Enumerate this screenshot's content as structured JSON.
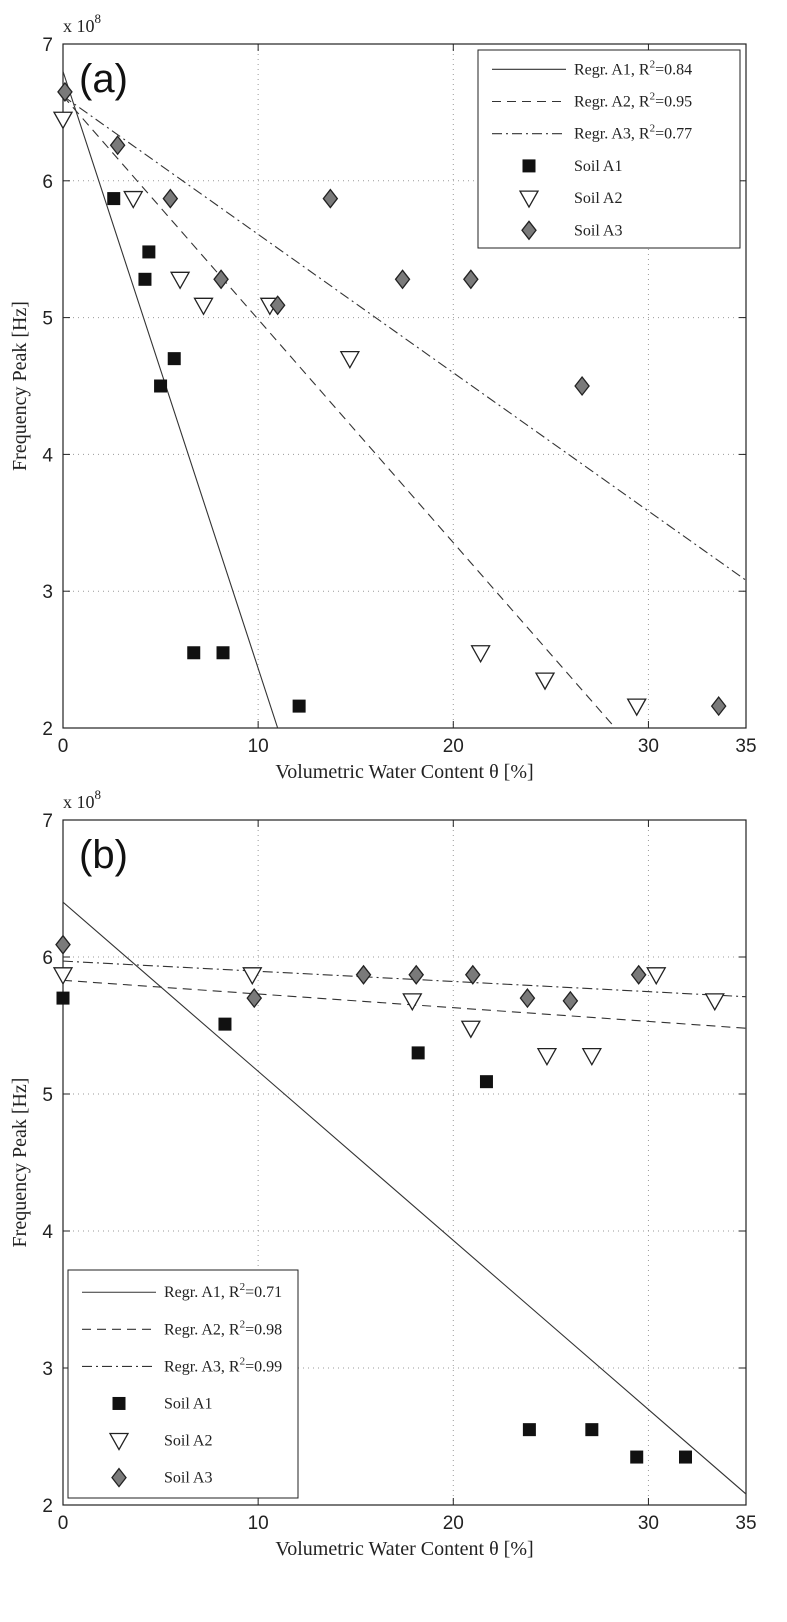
{
  "chart_data": [
    {
      "type": "scatter",
      "panel_label": "(a)",
      "xlabel": "Volumetric Water Content θ [%]",
      "ylabel": "Frequency Peak [Hz]",
      "y_scale_label": "x 10",
      "y_scale_exponent": "8",
      "xlim": [
        0,
        35
      ],
      "ylim": [
        2,
        7
      ],
      "x_ticks": [
        "0",
        "10",
        "20",
        "30",
        "35"
      ],
      "y_ticks": [
        "2",
        "3",
        "4",
        "5",
        "6",
        "7"
      ],
      "x_tick_values": [
        0,
        10,
        20,
        30,
        35
      ],
      "y_tick_values": [
        2,
        3,
        4,
        5,
        6,
        7
      ],
      "grid": "dotted",
      "legend_position": "top-right",
      "series": [
        {
          "name": "Soil A1",
          "marker": "square",
          "color": "#111111",
          "x": [
            2.6,
            4.2,
            4.4,
            5.0,
            5.7,
            6.7,
            8.2,
            12.1
          ],
          "y": [
            5.87,
            5.28,
            5.48,
            4.5,
            4.7,
            2.55,
            2.55,
            2.16
          ]
        },
        {
          "name": "Soil A2",
          "marker": "triangle-down",
          "color": "#ffffff",
          "x": [
            0.0,
            3.6,
            6.0,
            7.2,
            10.6,
            14.7,
            21.4,
            24.7,
            29.4
          ],
          "y": [
            6.45,
            5.87,
            5.28,
            5.09,
            5.09,
            4.7,
            2.55,
            2.35,
            2.16
          ]
        },
        {
          "name": "Soil A3",
          "marker": "diamond",
          "color": "#7a7a7a",
          "x": [
            0.1,
            2.8,
            5.5,
            8.1,
            11.0,
            13.7,
            17.4,
            20.9,
            26.6,
            33.6
          ],
          "y": [
            6.65,
            6.26,
            5.87,
            5.28,
            5.09,
            5.87,
            5.28,
            5.28,
            4.5,
            2.16
          ]
        }
      ],
      "regressions": [
        {
          "name": "Regr. A1, R",
          "r2_value": "=0.84",
          "style": "solid",
          "x": [
            0.0,
            11.0
          ],
          "y": [
            6.8,
            2.0
          ]
        },
        {
          "name": "Regr. A2, R",
          "r2_value": "=0.95",
          "style": "dashed",
          "x": [
            0.0,
            28.3
          ],
          "y": [
            6.62,
            2.0
          ]
        },
        {
          "name": "Regr. A3, R",
          "r2_value": "=0.77",
          "style": "dashdot",
          "x": [
            0.0,
            35.0
          ],
          "y": [
            6.62,
            3.08
          ]
        }
      ],
      "superscript": "2"
    },
    {
      "type": "scatter",
      "panel_label": "(b)",
      "xlabel": "Volumetric Water Content θ [%]",
      "ylabel": "Frequency Peak [Hz]",
      "y_scale_label": "x 10",
      "y_scale_exponent": "8",
      "xlim": [
        0,
        35
      ],
      "ylim": [
        2,
        7
      ],
      "x_ticks": [
        "0",
        "10",
        "20",
        "30",
        "35"
      ],
      "y_ticks": [
        "2",
        "3",
        "4",
        "5",
        "6",
        "7"
      ],
      "x_tick_values": [
        0,
        10,
        20,
        30,
        35
      ],
      "y_tick_values": [
        2,
        3,
        4,
        5,
        6,
        7
      ],
      "grid": "dotted",
      "legend_position": "bottom-left",
      "series": [
        {
          "name": "Soil A1",
          "marker": "square",
          "color": "#111111",
          "x": [
            0.0,
            8.3,
            18.2,
            21.7,
            23.9,
            27.1,
            29.4,
            31.9
          ],
          "y": [
            5.7,
            5.51,
            5.3,
            5.09,
            2.55,
            2.55,
            2.35,
            2.35
          ]
        },
        {
          "name": "Soil A2",
          "marker": "triangle-down",
          "color": "#ffffff",
          "x": [
            0.0,
            9.7,
            17.9,
            20.9,
            24.8,
            27.1,
            30.4,
            33.4
          ],
          "y": [
            5.87,
            5.87,
            5.68,
            5.48,
            5.28,
            5.28,
            5.87,
            5.68
          ]
        },
        {
          "name": "Soil A3",
          "marker": "diamond",
          "color": "#7a7a7a",
          "x": [
            0.0,
            9.8,
            15.4,
            18.1,
            21.0,
            23.8,
            26.0,
            29.5
          ],
          "y": [
            6.09,
            5.7,
            5.87,
            5.87,
            5.87,
            5.7,
            5.68,
            5.87
          ]
        }
      ],
      "regressions": [
        {
          "name": "Regr. A1, R",
          "r2_value": "=0.71",
          "style": "solid",
          "x": [
            0.0,
            35.0
          ],
          "y": [
            6.4,
            2.08
          ]
        },
        {
          "name": "Regr. A2, R",
          "r2_value": "=0.98",
          "style": "dashed",
          "x": [
            0.0,
            35.0
          ],
          "y": [
            5.83,
            5.48
          ]
        },
        {
          "name": "Regr. A3, R",
          "r2_value": "=0.99",
          "style": "dashdot",
          "x": [
            0.0,
            35.0
          ],
          "y": [
            5.97,
            5.71
          ]
        }
      ],
      "superscript": "2"
    }
  ]
}
